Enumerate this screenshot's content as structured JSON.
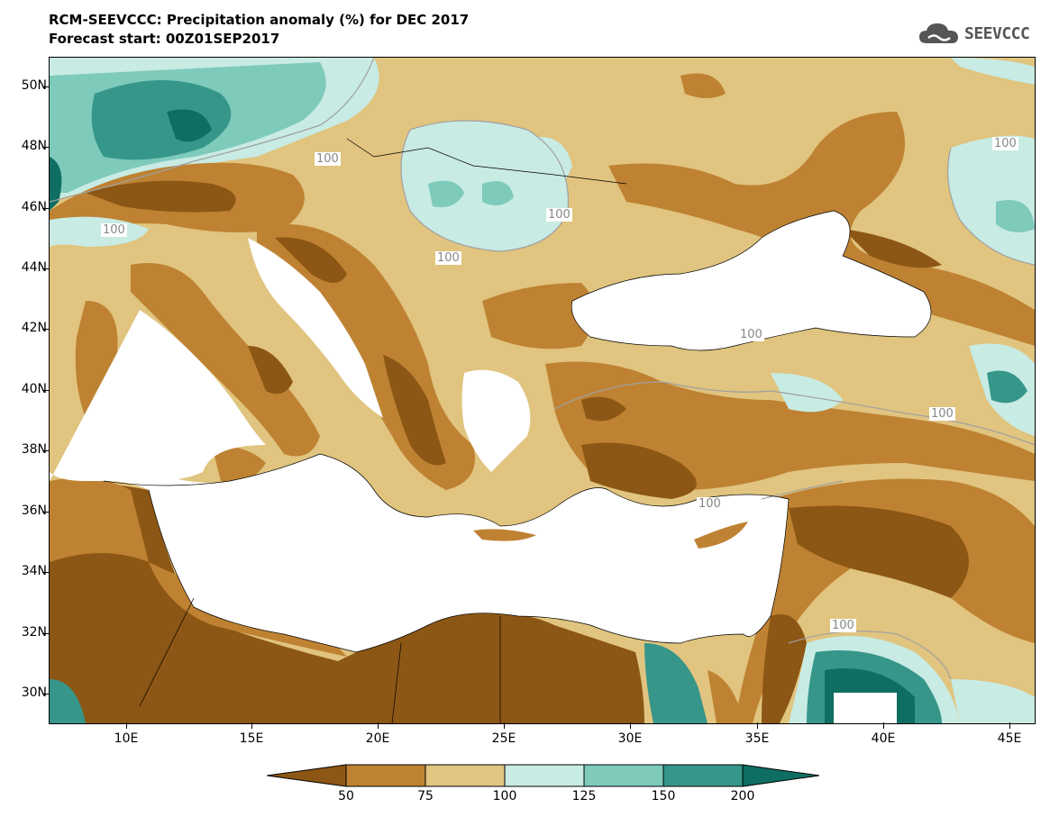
{
  "header": {
    "title": "RCM-SEEVCCC: Precipitation anomaly (%) for DEC 2017",
    "subtitle": "Forecast start: 00Z01SEP2017"
  },
  "logo": {
    "text": "SEEVCCC",
    "icon": "cloud-icon"
  },
  "axes": {
    "lat_labels": [
      "50N",
      "48N",
      "46N",
      "44N",
      "42N",
      "40N",
      "38N",
      "36N",
      "34N",
      "32N",
      "30N"
    ],
    "lon_labels": [
      "10E",
      "15E",
      "20E",
      "25E",
      "30E",
      "35E",
      "40E",
      "45E"
    ]
  },
  "contour_labels": [
    "100",
    "100",
    "100",
    "100",
    "100",
    "100",
    "100",
    "100",
    "100"
  ],
  "colorbar": {
    "ticks": [
      "50",
      "75",
      "100",
      "125",
      "150",
      "200"
    ],
    "colors": [
      "#8c5614",
      "#be8232",
      "#e0c47f",
      "#c8ebe4",
      "#7ecabb",
      "#36968a",
      "#0e6e62"
    ]
  },
  "map_colors": {
    "very_dry": "#8c5614",
    "dry": "#be8232",
    "slightly_dry": "#e0c47f",
    "slightly_wet": "#c8ebe4",
    "wet": "#7ecabb",
    "very_wet": "#36968a",
    "extreme_wet": "#0e6e62",
    "sea": "#ffffff"
  }
}
